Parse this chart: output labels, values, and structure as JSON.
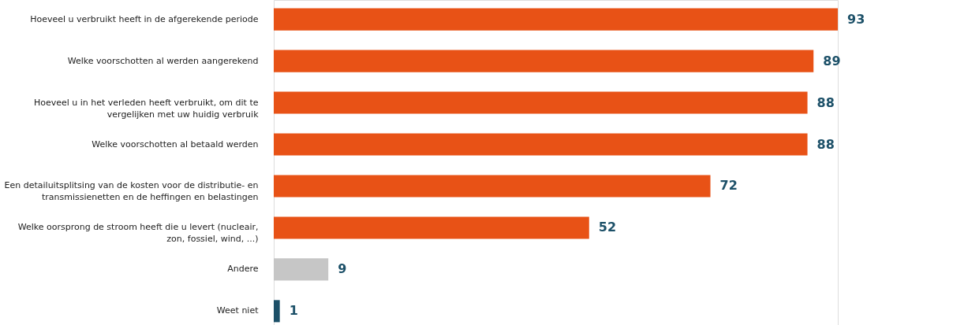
{
  "chart_data": {
    "type": "bar",
    "orientation": "horizontal",
    "data_labels": true,
    "categories": [
      "Hoeveel u verbruikt heeft in de afgerekende periode",
      "Welke voorschotten al werden aangerekend",
      "Hoeveel u in het verleden heeft verbruikt, om dit te\nvergelijken met uw huidig verbruik",
      "Welke voorschotten al betaald werden",
      "Een detailuitsplitsing van de kosten voor de distributie- en\ntransmissienetten en de heffingen en belastingen",
      "Welke oorsprong de stroom heeft die u levert (nucleair,\nzon, fossiel, wind, ...)",
      "Andere",
      "Weet niet"
    ],
    "values": [
      93,
      89,
      88,
      88,
      72,
      52,
      9,
      1
    ],
    "colors": [
      "#e85216",
      "#e85216",
      "#e85216",
      "#e85216",
      "#e85216",
      "#e85216",
      "#c6c6c6",
      "#1c5068"
    ]
  }
}
